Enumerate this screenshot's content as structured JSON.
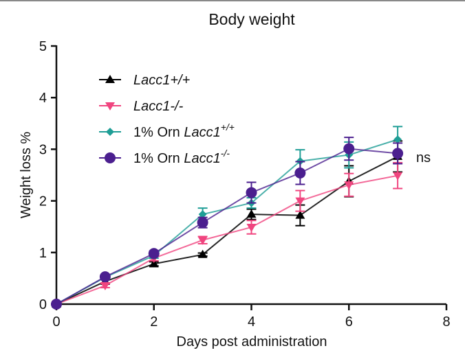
{
  "chart_data": {
    "type": "line",
    "title": "Body weight",
    "xlabel": "Days post administration",
    "ylabel": "Weight loss %",
    "xlim": [
      0,
      8
    ],
    "ylim": [
      0,
      5
    ],
    "xticks": [
      "0",
      "2",
      "4",
      "6",
      "8"
    ],
    "yticks": [
      "0",
      "1",
      "2",
      "3",
      "4",
      "5"
    ],
    "xtick_values": [
      0,
      2,
      4,
      6,
      8
    ],
    "ytick_values": [
      0,
      1,
      2,
      3,
      4,
      5
    ],
    "grid": false,
    "legend_position": "top-left",
    "annotation": "ns",
    "x": [
      0,
      1,
      2,
      3,
      4,
      5,
      6,
      7
    ],
    "series": [
      {
        "name": "Lacc1+/+",
        "label_parts": [
          {
            "text": "Lacc1+/+",
            "italic": true
          }
        ],
        "color": "#000000",
        "marker": "triangle-up",
        "values": [
          0,
          0.44,
          0.78,
          0.96,
          1.74,
          1.72,
          2.38,
          2.86
        ],
        "errors": [
          0,
          0.04,
          0.04,
          0.03,
          0.1,
          0.2,
          0.3,
          0.3
        ]
      },
      {
        "name": "Lacc1-/-",
        "label_parts": [
          {
            "text": "Lacc1-/-",
            "italic": true
          }
        ],
        "color": "#f0457f",
        "marker": "triangle-down",
        "values": [
          0,
          0.36,
          0.89,
          1.24,
          1.49,
          2.0,
          2.31,
          2.49
        ],
        "errors": [
          0,
          0.04,
          0.05,
          0.07,
          0.13,
          0.2,
          0.22,
          0.25
        ]
      },
      {
        "name": "1% Orn Lacc1+/+",
        "label_parts": [
          {
            "text": "1% Orn ",
            "italic": false
          },
          {
            "text": "Lacc1",
            "italic": true
          },
          {
            "text": "+/+",
            "italic": true,
            "sup": true
          }
        ],
        "color": "#1f9e96",
        "marker": "diamond",
        "values": [
          0,
          0.52,
          0.94,
          1.74,
          1.96,
          2.77,
          2.89,
          3.19
        ],
        "errors": [
          0,
          0.04,
          0.05,
          0.12,
          0.1,
          0.22,
          0.25,
          0.25
        ]
      },
      {
        "name": "1% Orn Lacc1-/-",
        "label_parts": [
          {
            "text": "1% Orn ",
            "italic": false
          },
          {
            "text": "Lacc1",
            "italic": true
          },
          {
            "text": "-/-",
            "italic": true,
            "sup": true
          }
        ],
        "color": "#4b1f8f",
        "marker": "circle",
        "values": [
          0,
          0.53,
          0.98,
          1.58,
          2.16,
          2.54,
          3.01,
          2.92
        ],
        "errors": [
          0,
          0.04,
          0.05,
          0.1,
          0.2,
          0.22,
          0.22,
          0.2
        ]
      }
    ]
  }
}
